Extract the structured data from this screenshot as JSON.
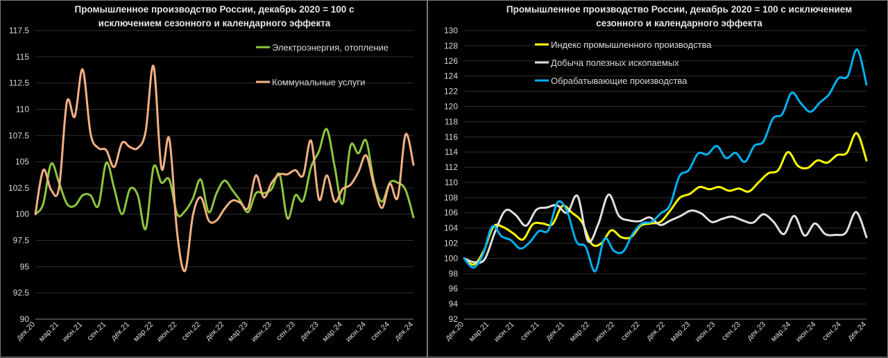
{
  "chart_data": [
    {
      "type": "line",
      "title_lines": [
        "Промышленное производство России, декабрь 2020 = 100 с",
        "исключением сезонного и календарного эффекта"
      ],
      "ylim": [
        90,
        117.5
      ],
      "yticks": [
        "90",
        "92.5",
        "95",
        "97.5",
        "100",
        "102.5",
        "105",
        "107.5",
        "110",
        "112.5",
        "115",
        "117.5"
      ],
      "x_labels": [
        "дек.20",
        "мар.21",
        "июн.21",
        "сен.21",
        "дек.21",
        "мар.22",
        "июн.22",
        "сен.22",
        "дек.22",
        "мар.23",
        "июн.23",
        "сен.23",
        "дек.23",
        "мар.24",
        "июн.24",
        "сен.24",
        "дек.24"
      ],
      "x_label_indices": [
        0,
        3,
        6,
        9,
        12,
        15,
        18,
        21,
        24,
        27,
        30,
        33,
        36,
        39,
        42,
        45,
        48
      ],
      "grid": true,
      "legend_position": "top-right",
      "series": [
        {
          "name": "Электроэнергия, отопление",
          "color": "#8dc63f",
          "values": [
            100.0,
            101.0,
            104.8,
            103.0,
            101.0,
            100.8,
            101.8,
            101.8,
            100.8,
            104.9,
            102.5,
            100.0,
            102.4,
            101.8,
            98.6,
            104.5,
            103.0,
            103.3,
            100.0,
            100.3,
            101.5,
            103.3,
            100.2,
            102.0,
            103.2,
            102.3,
            101.3,
            100.2,
            102.0,
            102.0,
            102.4,
            103.8,
            99.6,
            101.8,
            101.3,
            104.5,
            106.0,
            108.1,
            104.5,
            101.0,
            106.5,
            105.8,
            107.0,
            103.0,
            101.2,
            103.0,
            103.0,
            102.3,
            99.7
          ]
        },
        {
          "name": "Коммунальные услуги",
          "color": "#f4b183",
          "values": [
            100.0,
            104.2,
            102.3,
            102.5,
            110.7,
            109.3,
            113.8,
            107.7,
            106.3,
            106.1,
            104.5,
            106.8,
            106.4,
            106.3,
            107.9,
            114.1,
            104.4,
            107.2,
            98.2,
            94.6,
            99.9,
            101.6,
            99.4,
            99.4,
            100.5,
            101.3,
            101.1,
            100.6,
            103.7,
            101.6,
            103.0,
            103.8,
            103.8,
            104.2,
            103.7,
            107.0,
            101.4,
            103.7,
            101.2,
            102.4,
            102.8,
            104.0,
            105.6,
            102.7,
            100.6,
            102.9,
            101.6,
            107.6,
            104.7
          ]
        }
      ]
    },
    {
      "type": "line",
      "title_lines": [
        "Промышленное производство России, декабрь 2020 = 100 с исключением",
        "сезонного и календарного эффекта"
      ],
      "ylim": [
        92,
        130
      ],
      "yticks": [
        "92",
        "94",
        "96",
        "98",
        "100",
        "102",
        "104",
        "106",
        "108",
        "110",
        "112",
        "114",
        "116",
        "118",
        "120",
        "122",
        "124",
        "126",
        "128",
        "130"
      ],
      "x_labels": [
        "дек.20",
        "мар.21",
        "июн.21",
        "сен.21",
        "дек.21",
        "мар.22",
        "июн.22",
        "сен.22",
        "дек.22",
        "мар.23",
        "июн.23",
        "сен.23",
        "дек.23",
        "мар.24",
        "июн.24",
        "сен.24",
        "дек.24"
      ],
      "x_label_indices": [
        0,
        3,
        6,
        9,
        12,
        15,
        18,
        21,
        24,
        27,
        30,
        33,
        36,
        39,
        42,
        45,
        48
      ],
      "grid": true,
      "legend_position": "top-left",
      "series": [
        {
          "name": "Индекс промышленного производства",
          "color": "#ffff00",
          "values": [
            100.0,
            99.2,
            101.0,
            104.2,
            104.1,
            103.3,
            102.5,
            104.5,
            104.6,
            104.5,
            106.9,
            106.0,
            104.8,
            101.9,
            102.0,
            103.7,
            102.8,
            102.8,
            104.3,
            104.6,
            104.8,
            106.3,
            108.0,
            108.5,
            109.4,
            109.1,
            109.4,
            108.9,
            109.2,
            108.8,
            110.0,
            111.2,
            111.6,
            114.0,
            112.2,
            111.9,
            112.9,
            112.6,
            113.6,
            113.9,
            116.5,
            112.9
          ]
        },
        {
          "name": "Добыча полезных ископаемых",
          "color": "#e0e0e0",
          "values": [
            100.0,
            99.5,
            99.9,
            103.5,
            106.3,
            105.7,
            104.3,
            106.4,
            106.7,
            107.0,
            106.0,
            108.2,
            102.3,
            104.5,
            108.4,
            105.6,
            105.0,
            104.9,
            105.4,
            104.4,
            105.0,
            105.6,
            106.3,
            105.9,
            104.8,
            105.2,
            105.5,
            105.0,
            104.7,
            105.8,
            104.8,
            103.2,
            105.6,
            103.0,
            104.6,
            103.2,
            103.1,
            103.4,
            106.1,
            102.8
          ]
        },
        {
          "name": "Обрабатывающие производства",
          "color": "#00b0f0",
          "values": [
            100.0,
            98.8,
            100.5,
            104.2,
            102.9,
            102.4,
            101.3,
            102.1,
            103.6,
            103.7,
            107.4,
            106.2,
            102.2,
            101.5,
            98.3,
            102.6,
            101.0,
            100.9,
            103.2,
            104.6,
            104.8,
            105.9,
            107.0,
            110.8,
            111.6,
            113.8,
            113.7,
            114.8,
            113.2,
            113.9,
            112.7,
            114.8,
            115.4,
            118.4,
            119.0,
            121.8,
            120.4,
            119.3,
            120.5,
            121.6,
            123.7,
            124.0,
            127.5,
            122.9
          ]
        }
      ]
    }
  ]
}
